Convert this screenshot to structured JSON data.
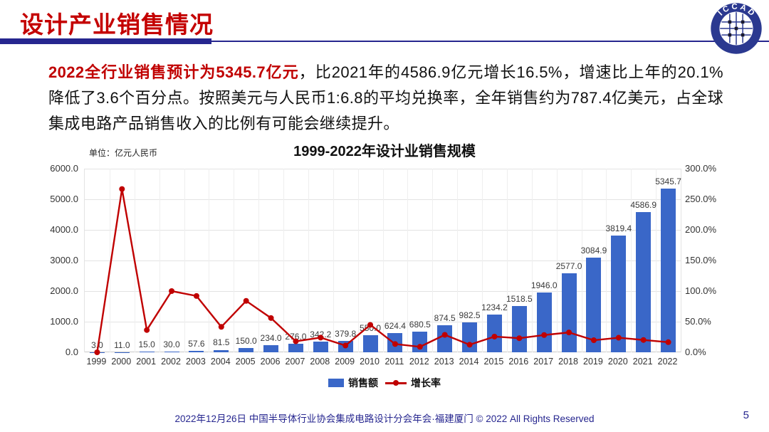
{
  "header": {
    "title": "设计产业销售情况"
  },
  "logo": {
    "text": "ICCAD"
  },
  "paragraph": {
    "highlight": "2022全行业销售预计为5345.7亿元",
    "rest": "，比2021年的4586.9亿元增长16.5%，增速比上年的20.1%降低了3.6个百分点。按照美元与人民币1:6.8的平均兑换率，全年销售约为787.4亿美元，占全球集成电路产品销售收入的比例有可能会继续提升。"
  },
  "chart": {
    "title": "1999-2022年设计业销售规模",
    "unit_label": "单位：亿元人民币",
    "legend": [
      {
        "label": "销售额",
        "color": "#3A67C8",
        "type": "bar"
      },
      {
        "label": "增长率",
        "color": "#C00000",
        "type": "line"
      }
    ]
  },
  "chart_data": {
    "type": "bar+line combo",
    "title": "1999-2022年设计业销售规模",
    "unit": "亿元人民币",
    "categories": [
      "1999",
      "2000",
      "2001",
      "2002",
      "2003",
      "2004",
      "2005",
      "2006",
      "2007",
      "2008",
      "2009",
      "2010",
      "2011",
      "2012",
      "2013",
      "2014",
      "2015",
      "2016",
      "2017",
      "2018",
      "2019",
      "2020",
      "2021",
      "2022"
    ],
    "series": [
      {
        "name": "销售额",
        "type": "bar",
        "axis": "left",
        "values": [
          3.0,
          11.0,
          15.0,
          30.0,
          57.6,
          81.5,
          150.0,
          234.0,
          276.0,
          342.2,
          379.8,
          550.0,
          624.4,
          680.5,
          874.5,
          982.5,
          1234.2,
          1518.5,
          1946.0,
          2577.0,
          3084.9,
          3819.4,
          4586.9,
          5345.7
        ],
        "labels": [
          "3.0",
          "11.0",
          "15.0",
          "30.0",
          "57.6",
          "81.5",
          "150.0",
          "234.0",
          "276.0",
          "342.2",
          "379.8",
          "550.0",
          "624.4",
          "680.5",
          "874.5",
          "982.5",
          "1234.2",
          "1518.5",
          "1946.0",
          "2577.0",
          "3084.9",
          "3819.4",
          "4586.9",
          "5345.7"
        ],
        "color": "#3A67C8"
      },
      {
        "name": "增长率",
        "type": "line",
        "axis": "right",
        "values": [
          0.0,
          266.7,
          36.4,
          100.0,
          92.0,
          41.5,
          84.0,
          56.0,
          17.9,
          24.0,
          11.0,
          44.8,
          13.5,
          9.0,
          28.5,
          12.4,
          25.6,
          23.0,
          28.2,
          32.4,
          19.7,
          23.8,
          20.1,
          16.5
        ],
        "color": "#C00000"
      }
    ],
    "left_axis": {
      "ticks": [
        "0.0",
        "1000.0",
        "2000.0",
        "3000.0",
        "4000.0",
        "5000.0",
        "6000.0"
      ],
      "range": [
        0,
        6000
      ]
    },
    "right_axis": {
      "ticks": [
        "0.0%",
        "50.0%",
        "100.0%",
        "150.0%",
        "200.0%",
        "250.0%",
        "300.0%"
      ],
      "range": [
        0,
        300
      ]
    },
    "grid": true,
    "legend_position": "bottom"
  },
  "footer": {
    "text": "2022年12月26日 中国半导体行业协会集成电路设计分会年会·福建厦门 © 2022 All Rights Reserved",
    "page": "5"
  },
  "colors": {
    "accent_red": "#C40000",
    "highlight_red": "#C00000",
    "navy": "#26268F",
    "bar_blue": "#3A67C8",
    "line_red": "#C00000",
    "gridline": "#E3E3E3"
  }
}
